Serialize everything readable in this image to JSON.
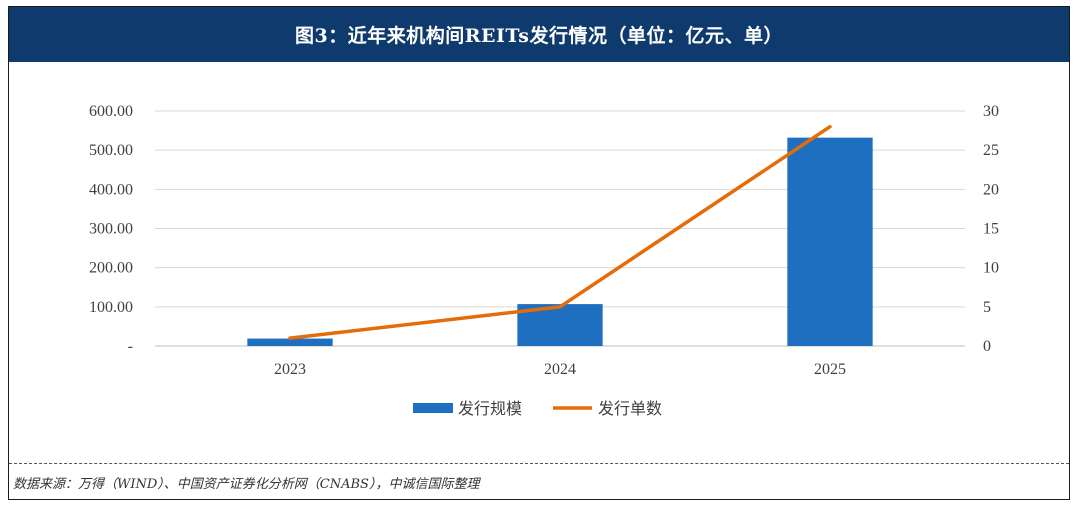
{
  "header": {
    "title": "图3：近年来机构间REITs发行情况（单位：亿元、单）"
  },
  "chart_data": {
    "type": "bar",
    "categories": [
      "2023",
      "2024",
      "2025"
    ],
    "series": [
      {
        "name": "发行规模",
        "type": "bar",
        "axis": "left",
        "values": [
          19,
          107,
          532
        ],
        "color": "#1f6fc0"
      },
      {
        "name": "发行单数",
        "type": "line",
        "axis": "right",
        "values": [
          1,
          5,
          28
        ],
        "color": "#e46c0a"
      }
    ],
    "left_axis": {
      "min": 0,
      "max": 600,
      "step": 100,
      "tick_labels": [
        "-",
        "100.00",
        "200.00",
        "300.00",
        "400.00",
        "500.00",
        "600.00"
      ]
    },
    "right_axis": {
      "min": 0,
      "max": 30,
      "step": 5,
      "tick_labels": [
        "0",
        "5",
        "10",
        "15",
        "20",
        "25",
        "30"
      ]
    },
    "grid": true,
    "legend": "bottom-center"
  },
  "footer": {
    "source": "数据来源：万得（WIND）、中国资产证券化分析网（CNABS），中诚信国际整理"
  }
}
